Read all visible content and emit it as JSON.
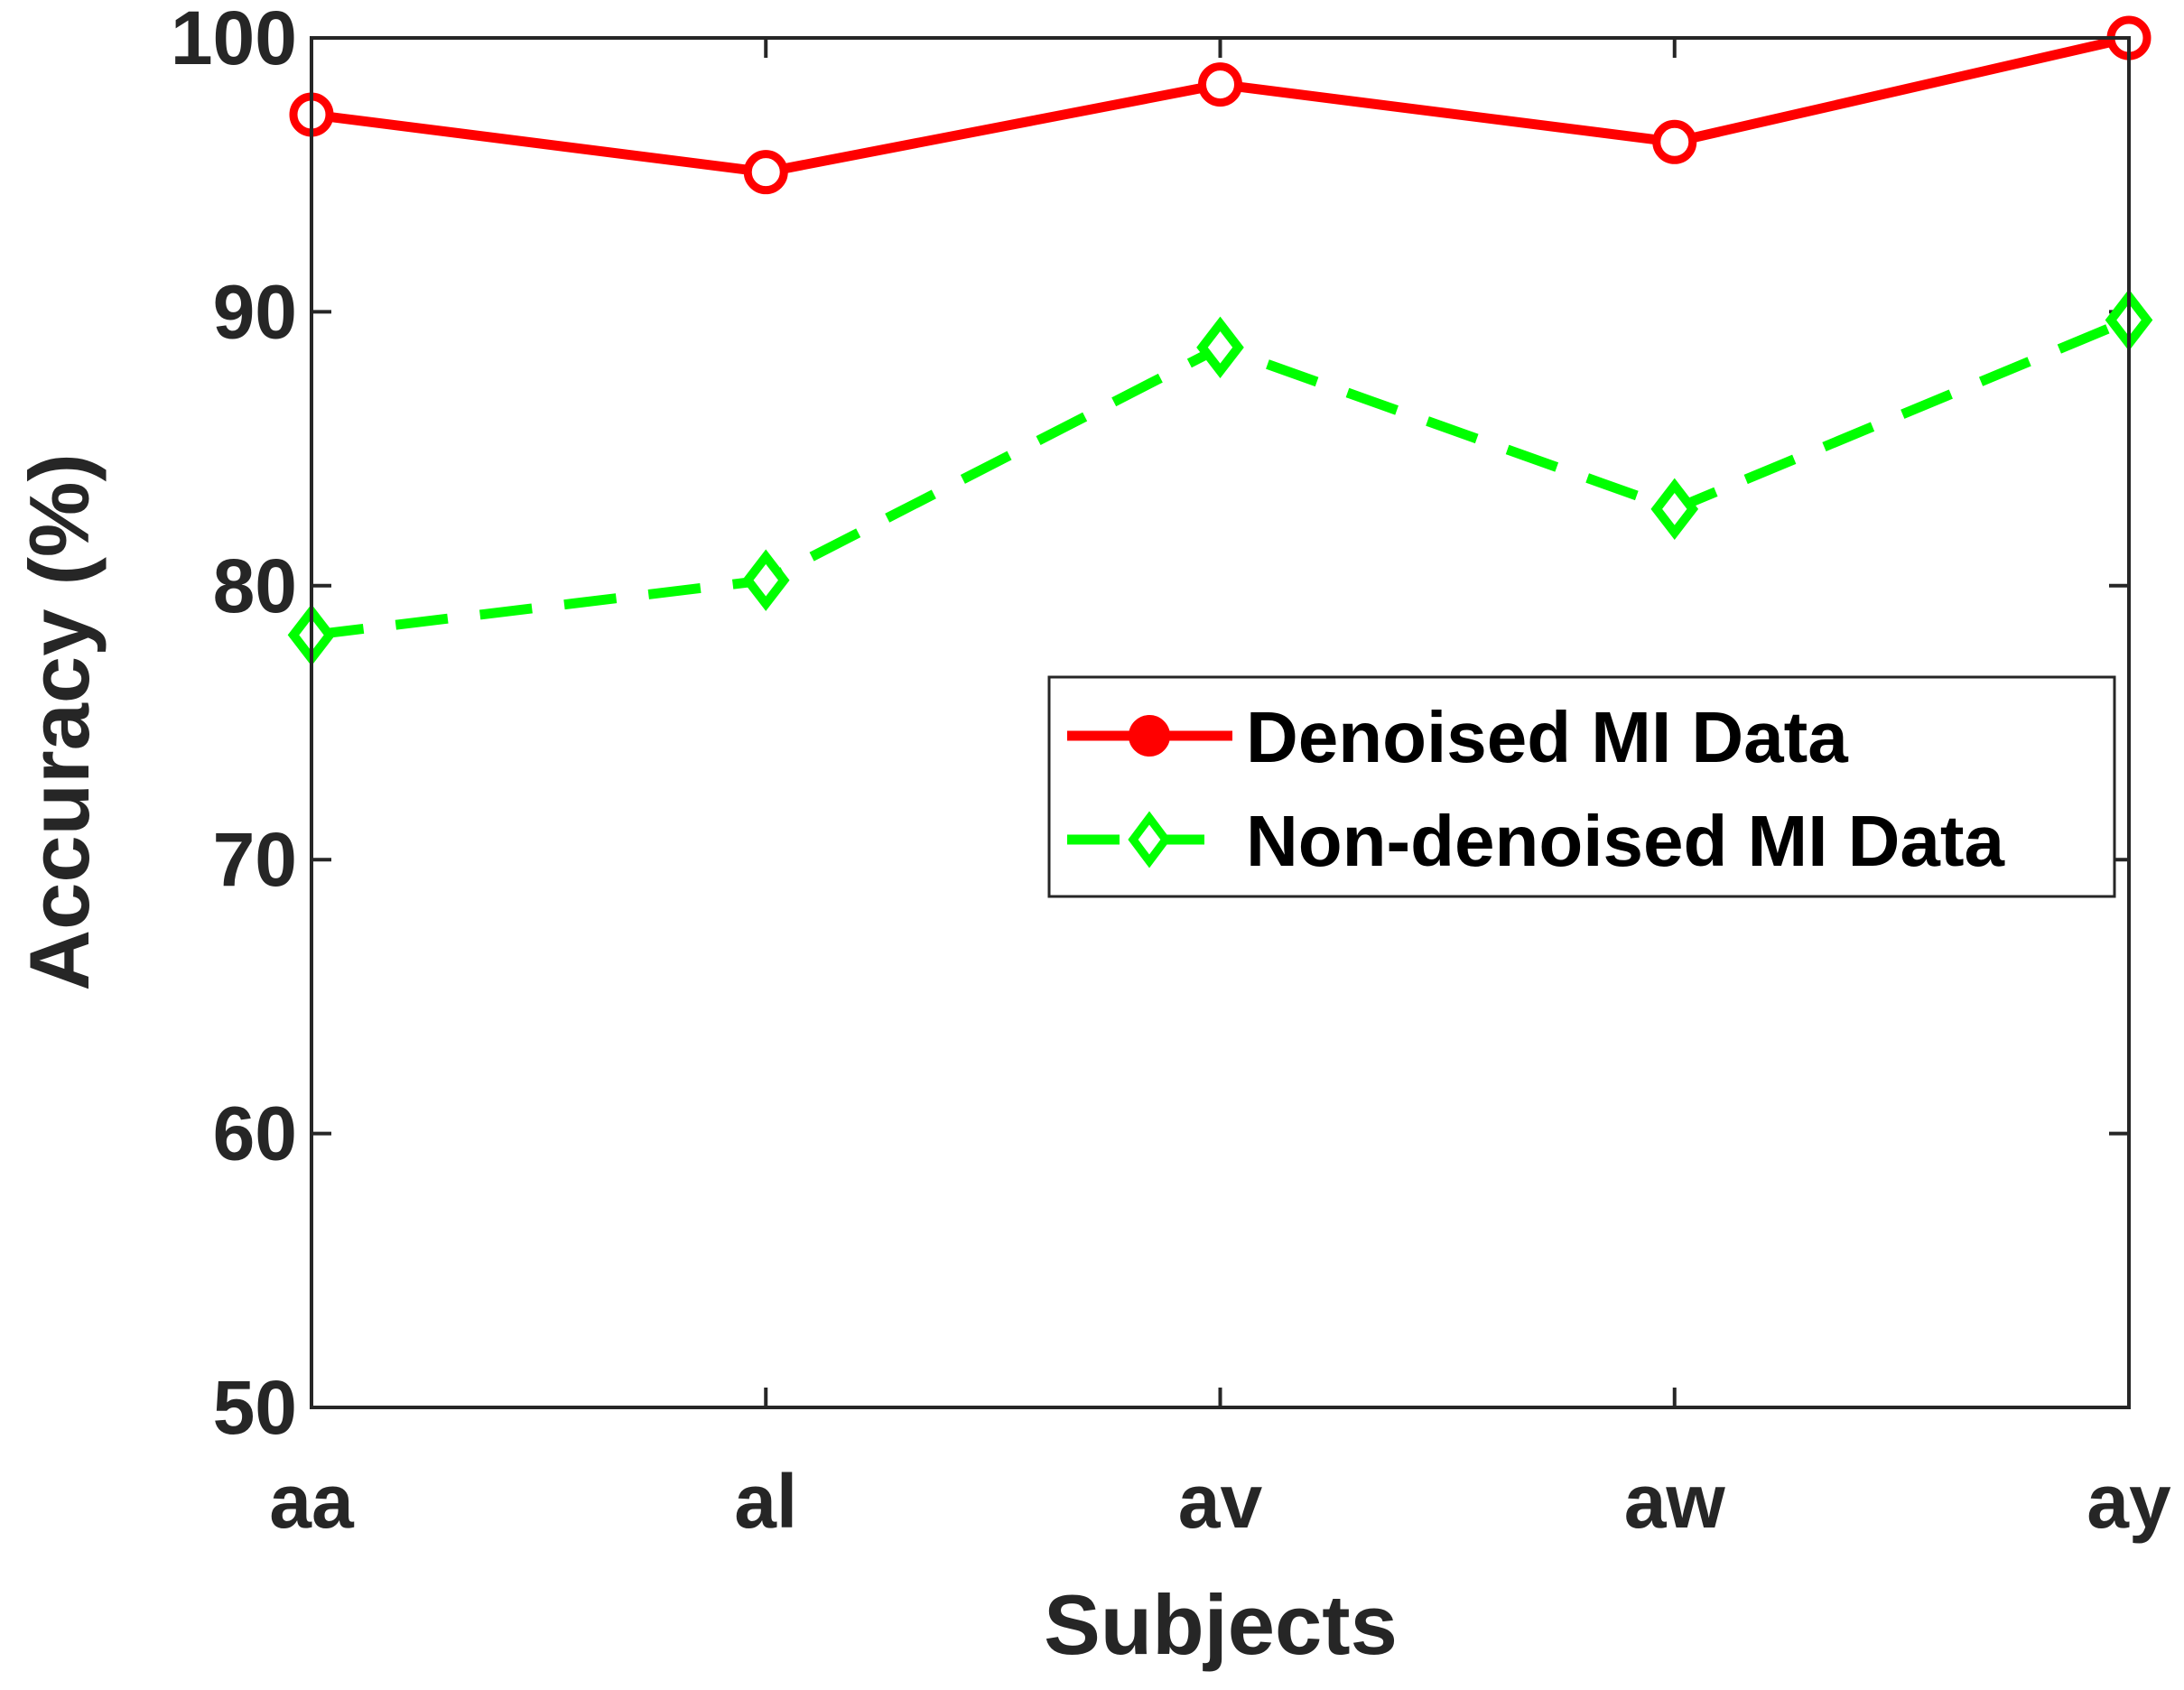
{
  "chart_data": {
    "type": "line",
    "title": "",
    "xlabel": "Subjects",
    "ylabel": "Accuracy (%)",
    "categories": [
      "aa",
      "al",
      "av",
      "aw",
      "ay"
    ],
    "ylim": [
      50,
      100
    ],
    "yticks": [
      50,
      60,
      70,
      80,
      90,
      100
    ],
    "grid": false,
    "legend_position": "middle-right",
    "series": [
      {
        "name": "Denoised MI Data",
        "values": [
          97.2,
          95.1,
          98.3,
          96.2,
          100
        ],
        "color": "#ff0000",
        "line_style": "solid",
        "marker": "circle"
      },
      {
        "name": "Non-denoised MI Data",
        "values": [
          78.2,
          80.2,
          88.7,
          82.8,
          89.7
        ],
        "color": "#00ff00",
        "line_style": "dashed",
        "marker": "diamond"
      }
    ]
  }
}
